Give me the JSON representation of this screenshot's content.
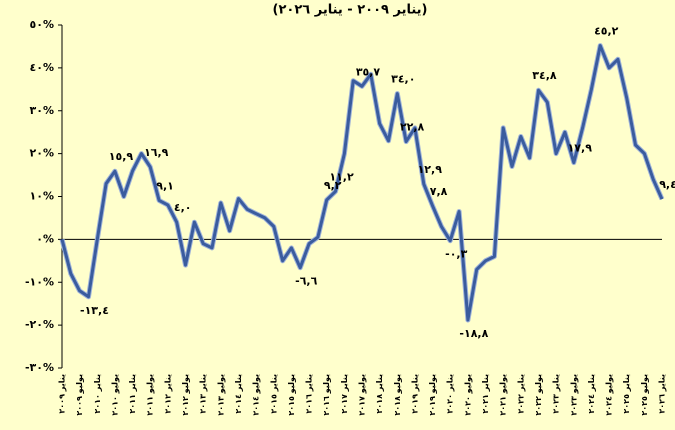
{
  "chart_data": {
    "type": "line",
    "title": "(يناير ٢٠٠٩ - يناير ٢٠٢٦)",
    "categories": [
      "يناير ٢٠٠٩",
      null,
      "يوليو ٢٠٠٩",
      null,
      "يناير ٢٠١٠",
      null,
      "يوليو ٢٠١٠",
      null,
      "يناير ٢٠١١",
      null,
      "يوليو ٢٠١١",
      null,
      "يناير ٢٠١٢",
      null,
      "يوليو ٢٠١٢",
      null,
      "يناير ٢٠١٣",
      null,
      "يوليو ٢٠١٣",
      null,
      "يناير ٢٠١٤",
      null,
      "يوليو ٢٠١٤",
      null,
      "يناير ٢٠١٥",
      null,
      "يوليو ٢٠١٥",
      null,
      "يناير ٢٠١٦",
      null,
      "يوليو ٢٠١٦",
      null,
      "يناير ٢٠١٧",
      null,
      "يوليو ٢٠١٧",
      null,
      "يناير ٢٠١٨",
      null,
      "يوليو ٢٠١٨",
      null,
      "يناير ٢٠١٩",
      null,
      "يوليو ٢٠١٩",
      null,
      "يناير ٢٠٢٠",
      null,
      "يوليو ٢٠٢٠",
      null,
      "يناير ٢٠٢١",
      null,
      "يوليو ٢٠٢١",
      null,
      "يناير ٢٠٢٢",
      null,
      "يوليو ٢٠٢٢",
      null,
      "يناير ٢٠٢٣",
      null,
      "يوليو ٢٠٢٣",
      null,
      "يناير ٢٠٢٤",
      null,
      "يوليو ٢٠٢٤",
      null,
      "يناير ٢٠٢٥",
      null,
      "يوليو ٢٠٢٥",
      null,
      "يناير ٢٠٢٦"
    ],
    "values": [
      0,
      -8,
      -12,
      -13.4,
      0,
      13,
      15.9,
      10,
      16,
      20,
      16.9,
      9.1,
      8,
      4.0,
      -6,
      4,
      -1,
      -2,
      8.5,
      2,
      9.5,
      7,
      6,
      5,
      3,
      -5,
      -2,
      -6.6,
      -1,
      0.5,
      9.2,
      11.2,
      20,
      37,
      35.7,
      38.5,
      27,
      23,
      34.0,
      22.8,
      26,
      12.9,
      7.8,
      3,
      -0.3,
      6.5,
      -18.8,
      -7,
      -5,
      -4,
      26,
      17,
      24,
      19,
      34.8,
      32,
      20,
      25,
      17.9,
      26,
      35,
      45.2,
      40,
      42,
      33,
      22,
      20,
      14,
      9.4
    ],
    "value_labels": [
      null,
      null,
      null,
      "-١٣,٤",
      null,
      null,
      "١٥,٩",
      null,
      null,
      null,
      "١٦,٩",
      "٩,١",
      null,
      "٤,٠",
      null,
      null,
      null,
      null,
      null,
      null,
      null,
      null,
      null,
      null,
      null,
      null,
      null,
      "-٦,٦",
      null,
      null,
      "٩,٢",
      "١١,٢",
      null,
      null,
      "٣٥,٧",
      null,
      null,
      null,
      "٣٤,٠",
      "٢٢,٨",
      null,
      "١٢,٩",
      "٧,٨",
      null,
      "-٠,٣",
      null,
      "-١٨,٨",
      null,
      null,
      null,
      null,
      null,
      null,
      null,
      "٣٤,٨",
      null,
      null,
      null,
      "١٧,٩",
      null,
      null,
      "٤٥,٢",
      null,
      null,
      null,
      null,
      null,
      null,
      "٩,٤"
    ],
    "color": "#3a5c9e",
    "ylim": [
      -30,
      50
    ],
    "yticks": [
      {
        "value": -30,
        "label": "-٣٠%"
      },
      {
        "value": -20,
        "label": "-٢٠%"
      },
      {
        "value": -10,
        "label": "-١٠%"
      },
      {
        "value": 0,
        "label": "٠%"
      },
      {
        "value": 10,
        "label": "١٠%"
      },
      {
        "value": 20,
        "label": "٢٠%"
      },
      {
        "value": 30,
        "label": "٣٠%"
      },
      {
        "value": 40,
        "label": "٤٠%"
      },
      {
        "value": 50,
        "label": "٥٠%"
      }
    ],
    "grid": false
  }
}
